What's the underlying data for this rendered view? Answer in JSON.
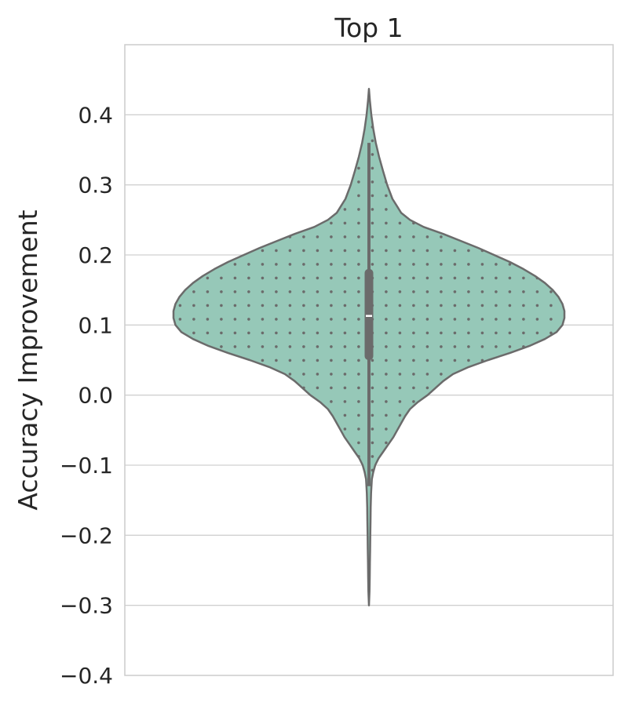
{
  "chart_data": {
    "type": "violin",
    "title": "Top 1",
    "xlabel": "",
    "ylabel": "Accuracy Improvement",
    "ylim": [
      -0.4,
      0.5
    ],
    "yticks": [
      -0.4,
      -0.3,
      -0.2,
      -0.1,
      0.0,
      0.1,
      0.2,
      0.3,
      0.4
    ],
    "ytick_labels": [
      "−0.4",
      "−0.3",
      "−0.2",
      "−0.1",
      "0.0",
      "0.1",
      "0.2",
      "0.3",
      "0.4"
    ],
    "grid": "horizontal",
    "colors": {
      "fill": "#96c8b8",
      "edge": "#6b6b6b",
      "grid": "#d0d0d0",
      "median": "#ffffff"
    },
    "violin": {
      "density_profile": [
        [
          0.437,
          0.0
        ],
        [
          0.42,
          0.005
        ],
        [
          0.4,
          0.012
        ],
        [
          0.38,
          0.022
        ],
        [
          0.36,
          0.035
        ],
        [
          0.34,
          0.052
        ],
        [
          0.32,
          0.072
        ],
        [
          0.3,
          0.093
        ],
        [
          0.28,
          0.12
        ],
        [
          0.26,
          0.165
        ],
        [
          0.25,
          0.21
        ],
        [
          0.24,
          0.28
        ],
        [
          0.23,
          0.38
        ],
        [
          0.22,
          0.47
        ],
        [
          0.21,
          0.56
        ],
        [
          0.2,
          0.64
        ],
        [
          0.19,
          0.72
        ],
        [
          0.18,
          0.79
        ],
        [
          0.17,
          0.85
        ],
        [
          0.16,
          0.9
        ],
        [
          0.15,
          0.94
        ],
        [
          0.14,
          0.97
        ],
        [
          0.13,
          0.99
        ],
        [
          0.12,
          1.0
        ],
        [
          0.11,
          1.0
        ],
        [
          0.1,
          0.99
        ],
        [
          0.09,
          0.96
        ],
        [
          0.08,
          0.9
        ],
        [
          0.07,
          0.82
        ],
        [
          0.06,
          0.72
        ],
        [
          0.05,
          0.61
        ],
        [
          0.04,
          0.51
        ],
        [
          0.03,
          0.43
        ],
        [
          0.02,
          0.38
        ],
        [
          0.01,
          0.34
        ],
        [
          0.0,
          0.3
        ],
        [
          -0.01,
          0.25
        ],
        [
          -0.02,
          0.21
        ],
        [
          -0.03,
          0.185
        ],
        [
          -0.04,
          0.165
        ],
        [
          -0.05,
          0.145
        ],
        [
          -0.06,
          0.125
        ],
        [
          -0.07,
          0.1
        ],
        [
          -0.08,
          0.075
        ],
        [
          -0.09,
          0.05
        ],
        [
          -0.1,
          0.032
        ],
        [
          -0.11,
          0.022
        ],
        [
          -0.12,
          0.015
        ],
        [
          -0.14,
          0.011
        ],
        [
          -0.16,
          0.009
        ],
        [
          -0.18,
          0.008
        ],
        [
          -0.2,
          0.007
        ],
        [
          -0.22,
          0.006
        ],
        [
          -0.24,
          0.005
        ],
        [
          -0.26,
          0.004
        ],
        [
          -0.28,
          0.003
        ],
        [
          -0.3,
          0.0
        ]
      ],
      "whisker_low": -0.13,
      "whisker_high": 0.36,
      "q1": 0.05,
      "q3": 0.18,
      "median": 0.113,
      "max": 0.437,
      "min": -0.3
    }
  }
}
